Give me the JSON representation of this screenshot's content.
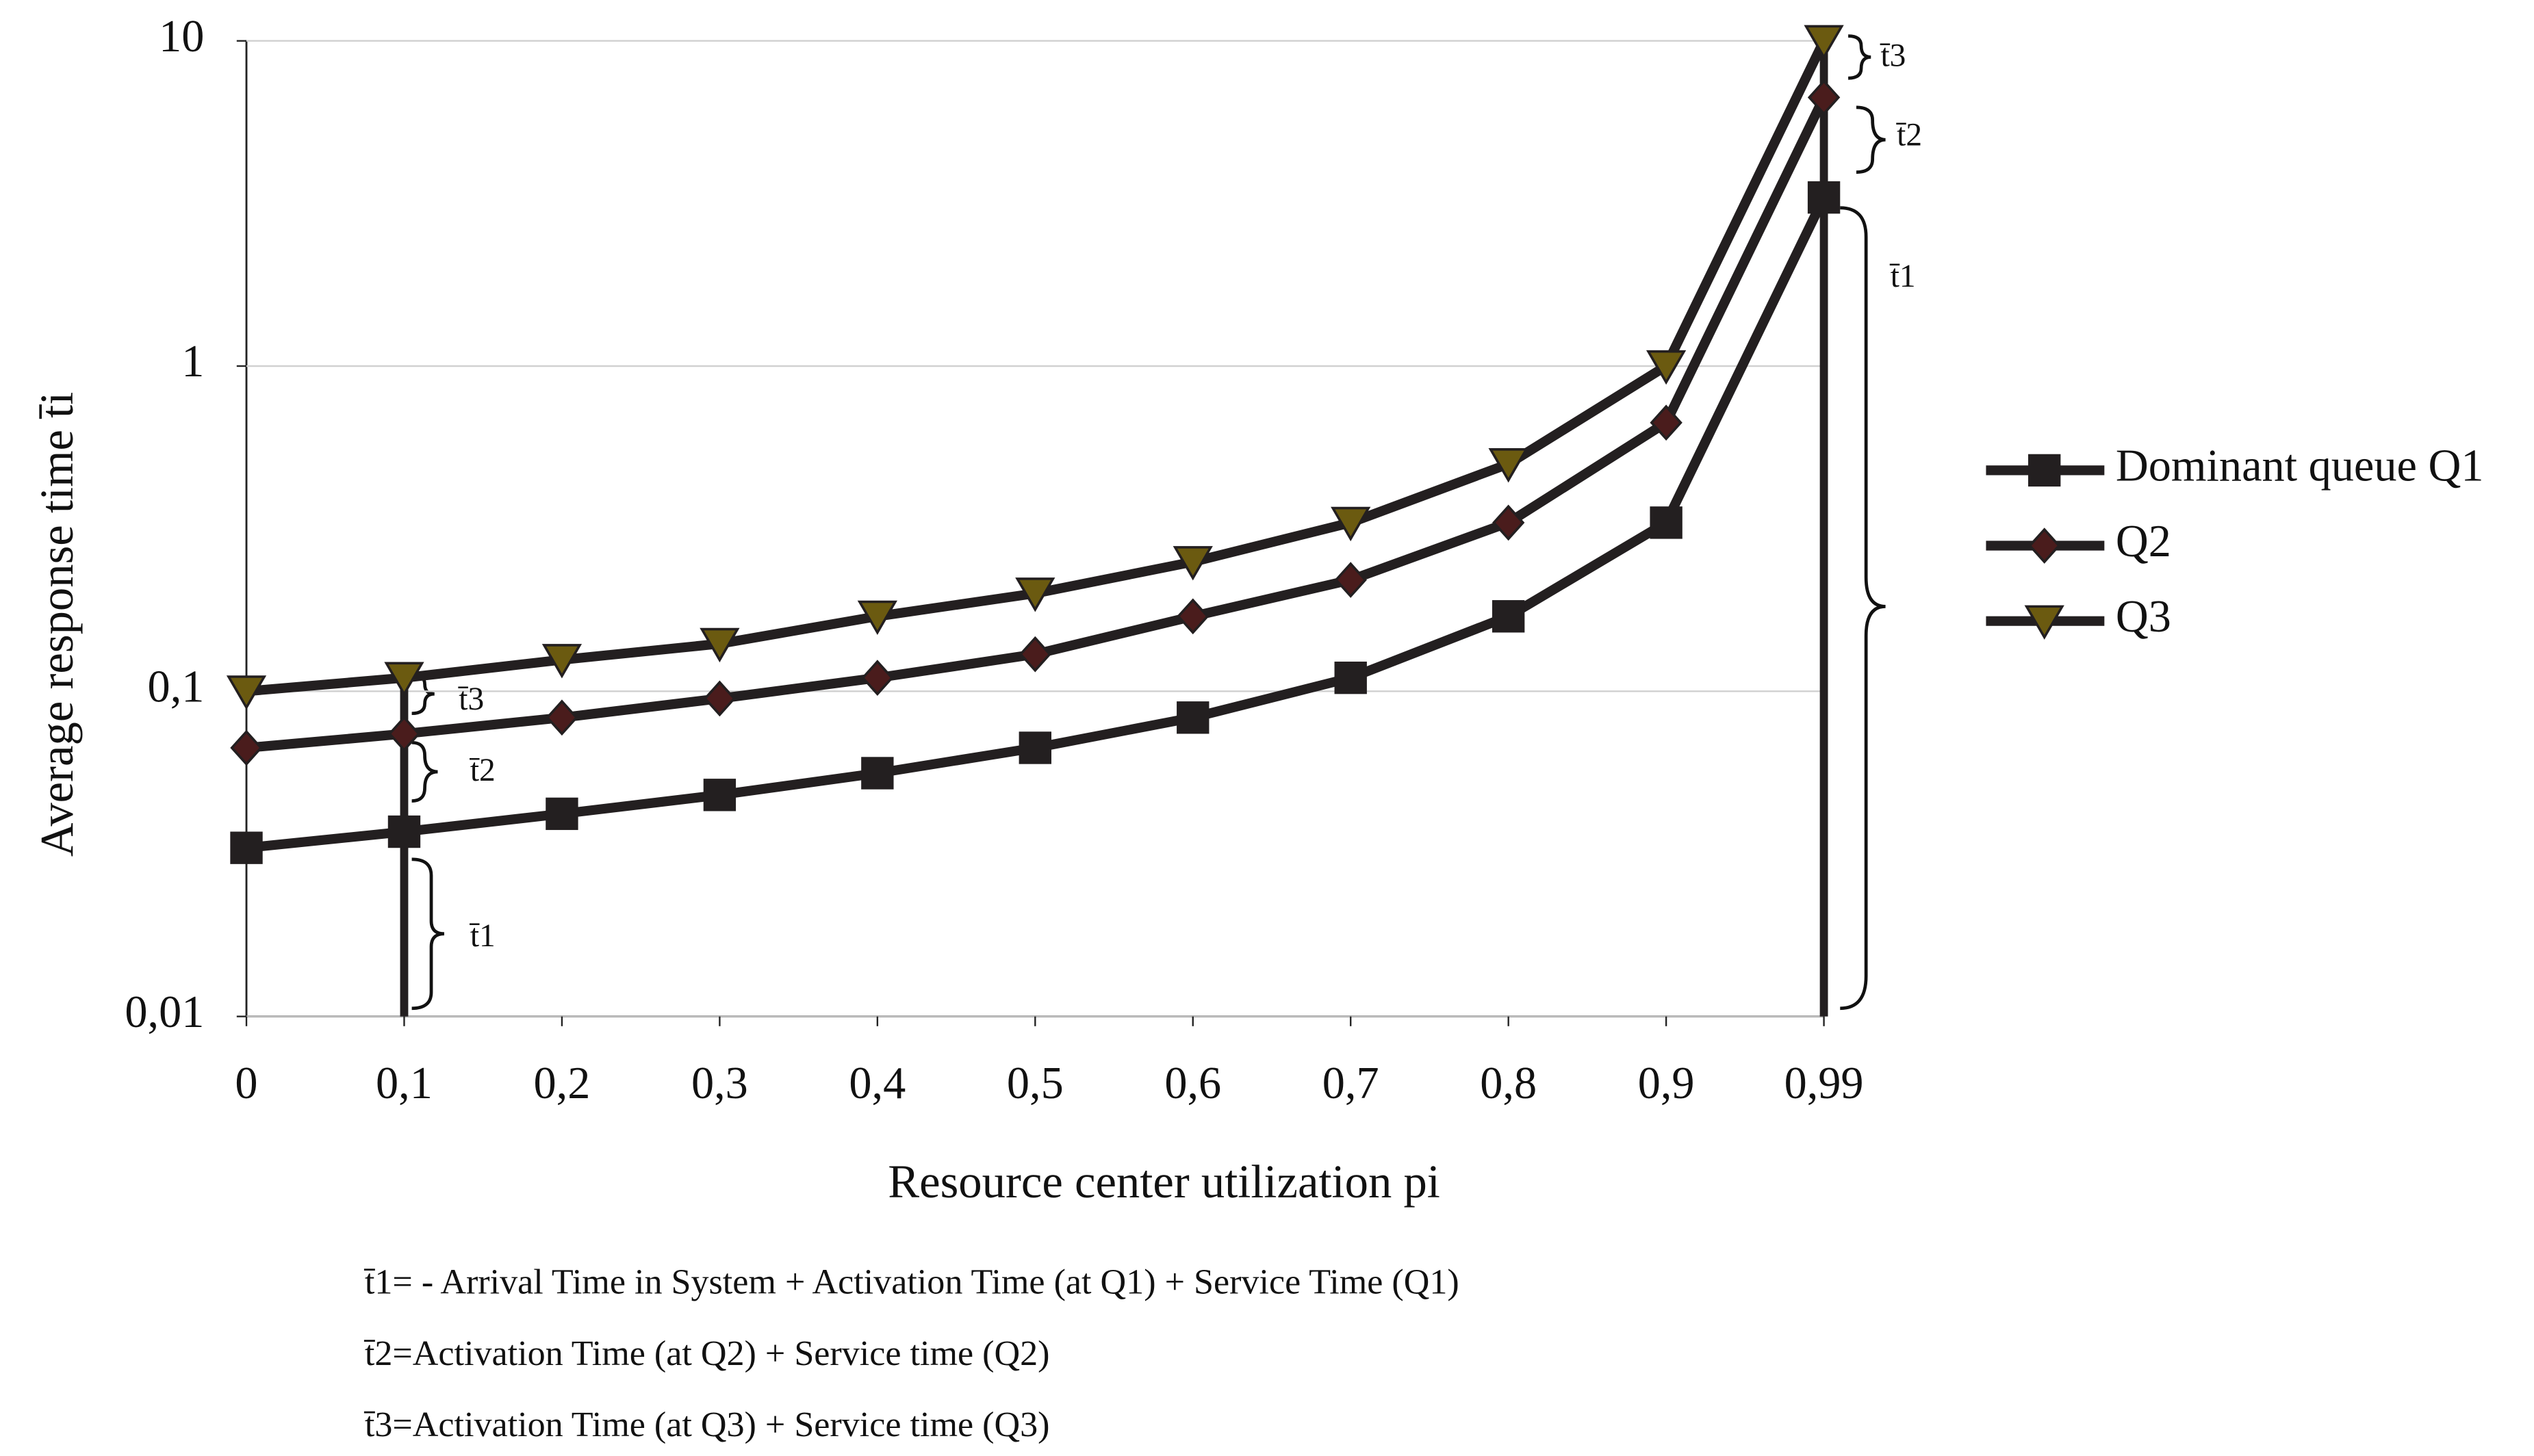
{
  "chart_data": {
    "type": "line",
    "x_label": "Resource center utilization pi",
    "y_label": "Average response time t̄i",
    "categories": [
      "0",
      "0,1",
      "0,2",
      "0,3",
      "0,4",
      "0,5",
      "0,6",
      "0,7",
      "0,8",
      "0,9",
      "0,99"
    ],
    "series": [
      {
        "name": "Dominant queue Q1",
        "color": "#231f20",
        "marker": "square",
        "marker_color": "#231f20",
        "values": [
          0.033,
          0.037,
          0.042,
          0.048,
          0.056,
          0.067,
          0.083,
          0.11,
          0.17,
          0.33,
          3.3
        ]
      },
      {
        "name": "Q2",
        "color": "#231f20",
        "marker": "diamond",
        "marker_color": "#4a1c1c",
        "values": [
          0.067,
          0.074,
          0.083,
          0.095,
          0.11,
          0.13,
          0.17,
          0.22,
          0.33,
          0.67,
          6.7
        ]
      },
      {
        "name": "Q3",
        "color": "#231f20",
        "marker": "triangle-down",
        "marker_color": "#6b5a10",
        "values": [
          0.1,
          0.11,
          0.125,
          0.14,
          0.17,
          0.2,
          0.25,
          0.33,
          0.5,
          1,
          10
        ]
      }
    ],
    "ylim": [
      0.01,
      10
    ],
    "yticks": [
      {
        "value": 0.01,
        "label": "0,01"
      },
      {
        "value": 0.1,
        "label": "0,1"
      },
      1,
      10
    ],
    "log_y": true,
    "grid": true,
    "legend": "right",
    "annotations": [
      "t̄1",
      "t̄2",
      "t̄3"
    ],
    "notes": [
      "t̄1= - Arrival Time in System + Activation Time (at Q1) + Service Time (Q1)",
      "t̄2=Activation Time (at Q2) + Service time (Q2)",
      "t̄3=Activation Time (at Q3) + Service time (Q3)"
    ]
  }
}
